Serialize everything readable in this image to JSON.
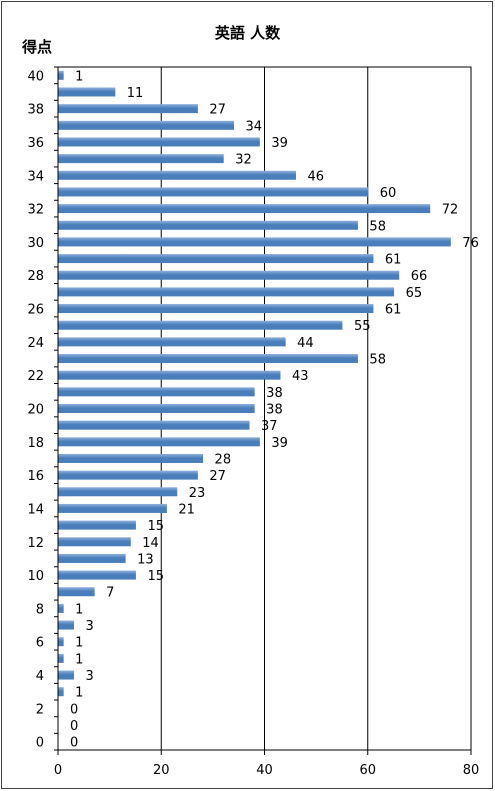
{
  "chart_data": {
    "type": "bar",
    "orientation": "horizontal",
    "title": "英語 人数",
    "ylabel": "得点",
    "xlabel": "",
    "categories": [
      40,
      39,
      38,
      37,
      36,
      35,
      34,
      33,
      32,
      31,
      30,
      29,
      28,
      27,
      26,
      25,
      24,
      23,
      22,
      21,
      20,
      19,
      18,
      17,
      16,
      15,
      14,
      13,
      12,
      11,
      10,
      9,
      8,
      7,
      6,
      5,
      4,
      3,
      2,
      1,
      0
    ],
    "values": [
      1,
      11,
      27,
      34,
      39,
      32,
      46,
      60,
      72,
      58,
      76,
      61,
      66,
      65,
      61,
      55,
      44,
      58,
      43,
      38,
      38,
      37,
      39,
      28,
      27,
      23,
      21,
      15,
      14,
      13,
      15,
      7,
      1,
      3,
      1,
      1,
      3,
      1,
      0,
      0,
      0
    ],
    "y_tick_labels": [
      40,
      38,
      36,
      34,
      32,
      30,
      28,
      26,
      24,
      22,
      20,
      18,
      16,
      14,
      12,
      10,
      8,
      6,
      4,
      2,
      0
    ],
    "x_ticks": [
      0,
      20,
      40,
      60,
      80
    ],
    "xlim": [
      0,
      80
    ],
    "grid": "vertical",
    "legend": "none",
    "bar_color": "#4a7ebb",
    "bar_highlight": "#8fb0dd"
  }
}
